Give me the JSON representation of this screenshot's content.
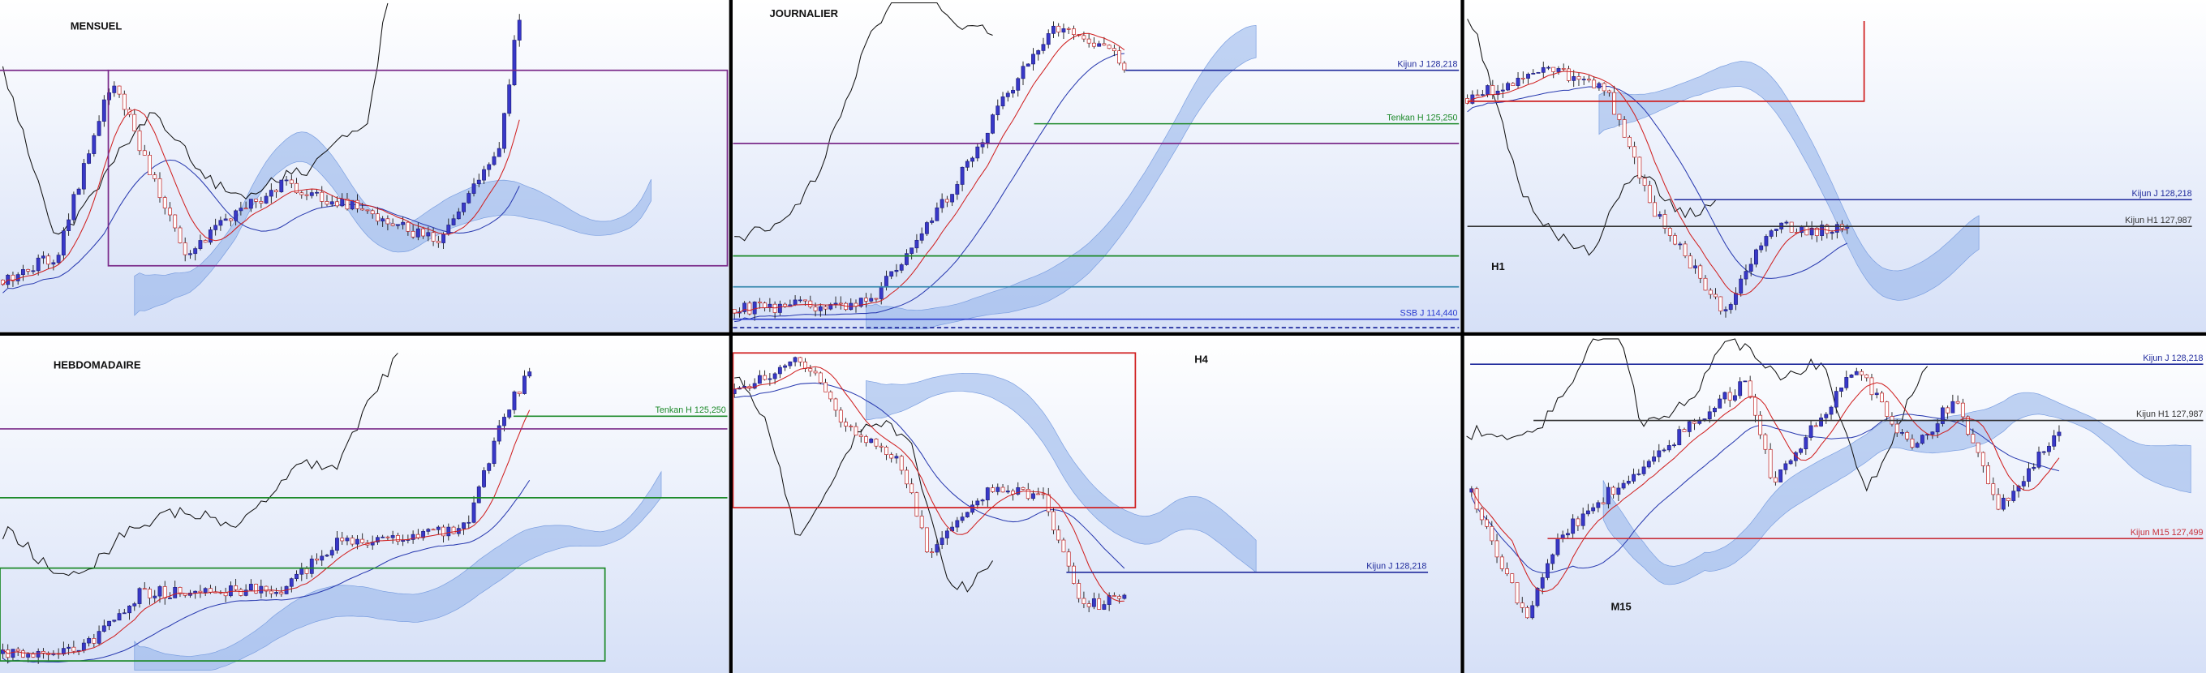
{
  "panels": [
    {
      "title": "MENSUEL",
      "levels": []
    },
    {
      "title": "JOURNALIER",
      "levels": [
        {
          "label": "Kijun J 128,218",
          "color": "#1f2a9c"
        },
        {
          "label": "Tenkan H 125,250",
          "color": "#1d8a2a"
        },
        {
          "label": "SSB J 114,440",
          "color": "#2a3bd0"
        }
      ]
    },
    {
      "title": "H1",
      "levels": [
        {
          "label": "Kijun J 128,218",
          "color": "#1f2a9c"
        },
        {
          "label": "Kijun H1 127,987",
          "color": "#333333"
        }
      ]
    },
    {
      "title": "HEBDOMADAIRE",
      "levels": [
        {
          "label": "Tenkan H 125,250",
          "color": "#1d8a2a"
        }
      ]
    },
    {
      "title": "H4",
      "levels": [
        {
          "label": "Kijun J 128,218",
          "color": "#1f2a9c"
        }
      ]
    },
    {
      "title": "M15",
      "levels": [
        {
          "label": "Kijun J 128,218",
          "color": "#1f2a9c"
        },
        {
          "label": "Kijun H1 127,987",
          "color": "#333333"
        },
        {
          "label": "Kijun M15 127,499",
          "color": "#c8303a"
        }
      ]
    }
  ]
}
